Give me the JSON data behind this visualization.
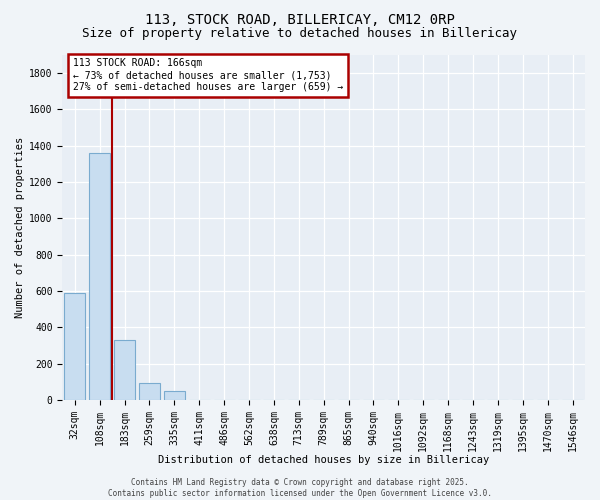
{
  "title1": "113, STOCK ROAD, BILLERICAY, CM12 0RP",
  "title2": "Size of property relative to detached houses in Billericay",
  "xlabel": "Distribution of detached houses by size in Billericay",
  "ylabel": "Number of detached properties",
  "categories": [
    "32sqm",
    "108sqm",
    "183sqm",
    "259sqm",
    "335sqm",
    "411sqm",
    "486sqm",
    "562sqm",
    "638sqm",
    "713sqm",
    "789sqm",
    "865sqm",
    "940sqm",
    "1016sqm",
    "1092sqm",
    "1168sqm",
    "1243sqm",
    "1319sqm",
    "1395sqm",
    "1470sqm",
    "1546sqm"
  ],
  "values": [
    590,
    1360,
    330,
    95,
    50,
    0,
    0,
    0,
    0,
    0,
    0,
    0,
    0,
    0,
    0,
    0,
    0,
    0,
    0,
    0,
    0
  ],
  "bar_color": "#c8ddf0",
  "bar_edge_color": "#7aabcf",
  "vline_x_pos": 1.5,
  "vline_color": "#aa0000",
  "annotation_text": "113 STOCK ROAD: 166sqm\n← 73% of detached houses are smaller (1,753)\n27% of semi-detached houses are larger (659) →",
  "annotation_box_edgecolor": "#aa0000",
  "ylim": [
    0,
    1900
  ],
  "yticks": [
    0,
    200,
    400,
    600,
    800,
    1000,
    1200,
    1400,
    1600,
    1800
  ],
  "footer1": "Contains HM Land Registry data © Crown copyright and database right 2025.",
  "footer2": "Contains public sector information licensed under the Open Government Licence v3.0.",
  "bg_color": "#f0f4f8",
  "plot_bg_color": "#e8eef5",
  "title_fontsize": 10,
  "subtitle_fontsize": 9,
  "axis_label_fontsize": 7.5,
  "tick_fontsize": 7,
  "footer_fontsize": 5.5
}
